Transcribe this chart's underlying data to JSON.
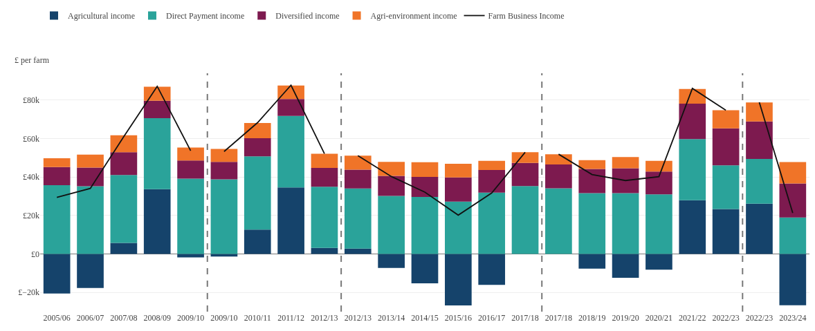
{
  "chart_data": {
    "type": "bar",
    "stacked": true,
    "ylabel": "£ per farm",
    "categories": [
      "2005/06",
      "2006/07",
      "2007/08",
      "2008/09",
      "2009/10",
      "2009/10",
      "2010/11",
      "2011/12",
      "2012/13",
      "2012/13",
      "2013/14",
      "2014/15",
      "2015/16",
      "2016/17",
      "2017/18",
      "2017/18",
      "2018/19",
      "2019/20",
      "2020/21",
      "2021/22",
      "2022/23",
      "2022/23",
      "2023/24"
    ],
    "series": [
      {
        "name": "Agricultural income",
        "color": "#15436b",
        "values": [
          -20.6,
          -17.7,
          5.8,
          33.7,
          -1.8,
          -1.3,
          12.7,
          34.6,
          3.2,
          2.8,
          -7.3,
          -15.3,
          -26.8,
          -16.1,
          0,
          0,
          -7.6,
          -12.4,
          -8.2,
          28.0,
          23.4,
          26.2,
          -26.7
        ]
      },
      {
        "name": "Direct Payment income",
        "color": "#2aa39a",
        "values": [
          35.8,
          35.2,
          35.3,
          36.9,
          39.2,
          38.8,
          38.1,
          37.2,
          31.8,
          31.3,
          30.2,
          29.7,
          27.2,
          31.9,
          35.3,
          34.2,
          31.6,
          31.6,
          31.0,
          31.8,
          22.7,
          23.2,
          19.0
        ]
      },
      {
        "name": "Diversified income",
        "color": "#7d1a4f",
        "values": [
          9.4,
          9.7,
          11.8,
          9.1,
          9.4,
          9.1,
          9.4,
          8.8,
          9.8,
          9.8,
          10.4,
          10.4,
          12.6,
          11.8,
          12.1,
          12.4,
          12.6,
          13.0,
          11.9,
          18.4,
          19.2,
          19.5,
          17.7
        ]
      },
      {
        "name": "Agri-environment income",
        "color": "#f07428",
        "values": [
          4.6,
          6.8,
          8.8,
          7.3,
          6.8,
          6.7,
          7.9,
          7.0,
          7.3,
          7.2,
          7.3,
          7.6,
          7.1,
          4.7,
          5.5,
          5.3,
          4.6,
          5.8,
          5.5,
          7.6,
          9.5,
          9.9,
          11.1
        ]
      },
      {
        "name": "Farm Business Income",
        "type": "line",
        "color": "#111111",
        "values": [
          29.4,
          34.1,
          61.0,
          87.2,
          53.7,
          null,
          null,
          null,
          null,
          null,
          null,
          null,
          null,
          null,
          null,
          null,
          null,
          null,
          null,
          null,
          null,
          null,
          null
        ]
      },
      {
        "type": "line",
        "color": "#111111",
        "values": [
          null,
          null,
          null,
          null,
          null,
          53.3,
          68.3,
          87.8,
          52.2,
          null,
          null,
          null,
          null,
          null,
          null,
          null,
          null,
          null,
          null,
          null,
          null,
          null,
          null
        ]
      },
      {
        "type": "line",
        "color": "#111111",
        "values": [
          null,
          null,
          null,
          null,
          null,
          null,
          null,
          null,
          null,
          51.1,
          40.3,
          32.2,
          20.2,
          31.7,
          52.9,
          null,
          null,
          null,
          null,
          null,
          null,
          null,
          null
        ]
      },
      {
        "type": "line",
        "color": "#111111",
        "values": [
          null,
          null,
          null,
          null,
          null,
          null,
          null,
          null,
          null,
          null,
          null,
          null,
          null,
          null,
          null,
          51.9,
          41.3,
          38.2,
          40.2,
          86.1,
          74.8,
          null,
          null
        ]
      },
      {
        "type": "line",
        "color": "#111111",
        "values": [
          null,
          null,
          null,
          null,
          null,
          null,
          null,
          null,
          null,
          null,
          null,
          null,
          null,
          null,
          null,
          null,
          null,
          null,
          null,
          null,
          null,
          78.9,
          21.3
        ]
      }
    ],
    "ylim": [
      -30,
      94
    ],
    "yticks": [
      {
        "value": -20,
        "label": "£−20k"
      },
      {
        "value": 0,
        "label": "£0"
      },
      {
        "value": 20,
        "label": "£20k"
      },
      {
        "value": 40,
        "label": "£40k"
      },
      {
        "value": 60,
        "label": "£60k"
      },
      {
        "value": 80,
        "label": "£80k"
      }
    ],
    "grid": "y",
    "legend": "top",
    "marker": "none",
    "line_style": "solid"
  }
}
